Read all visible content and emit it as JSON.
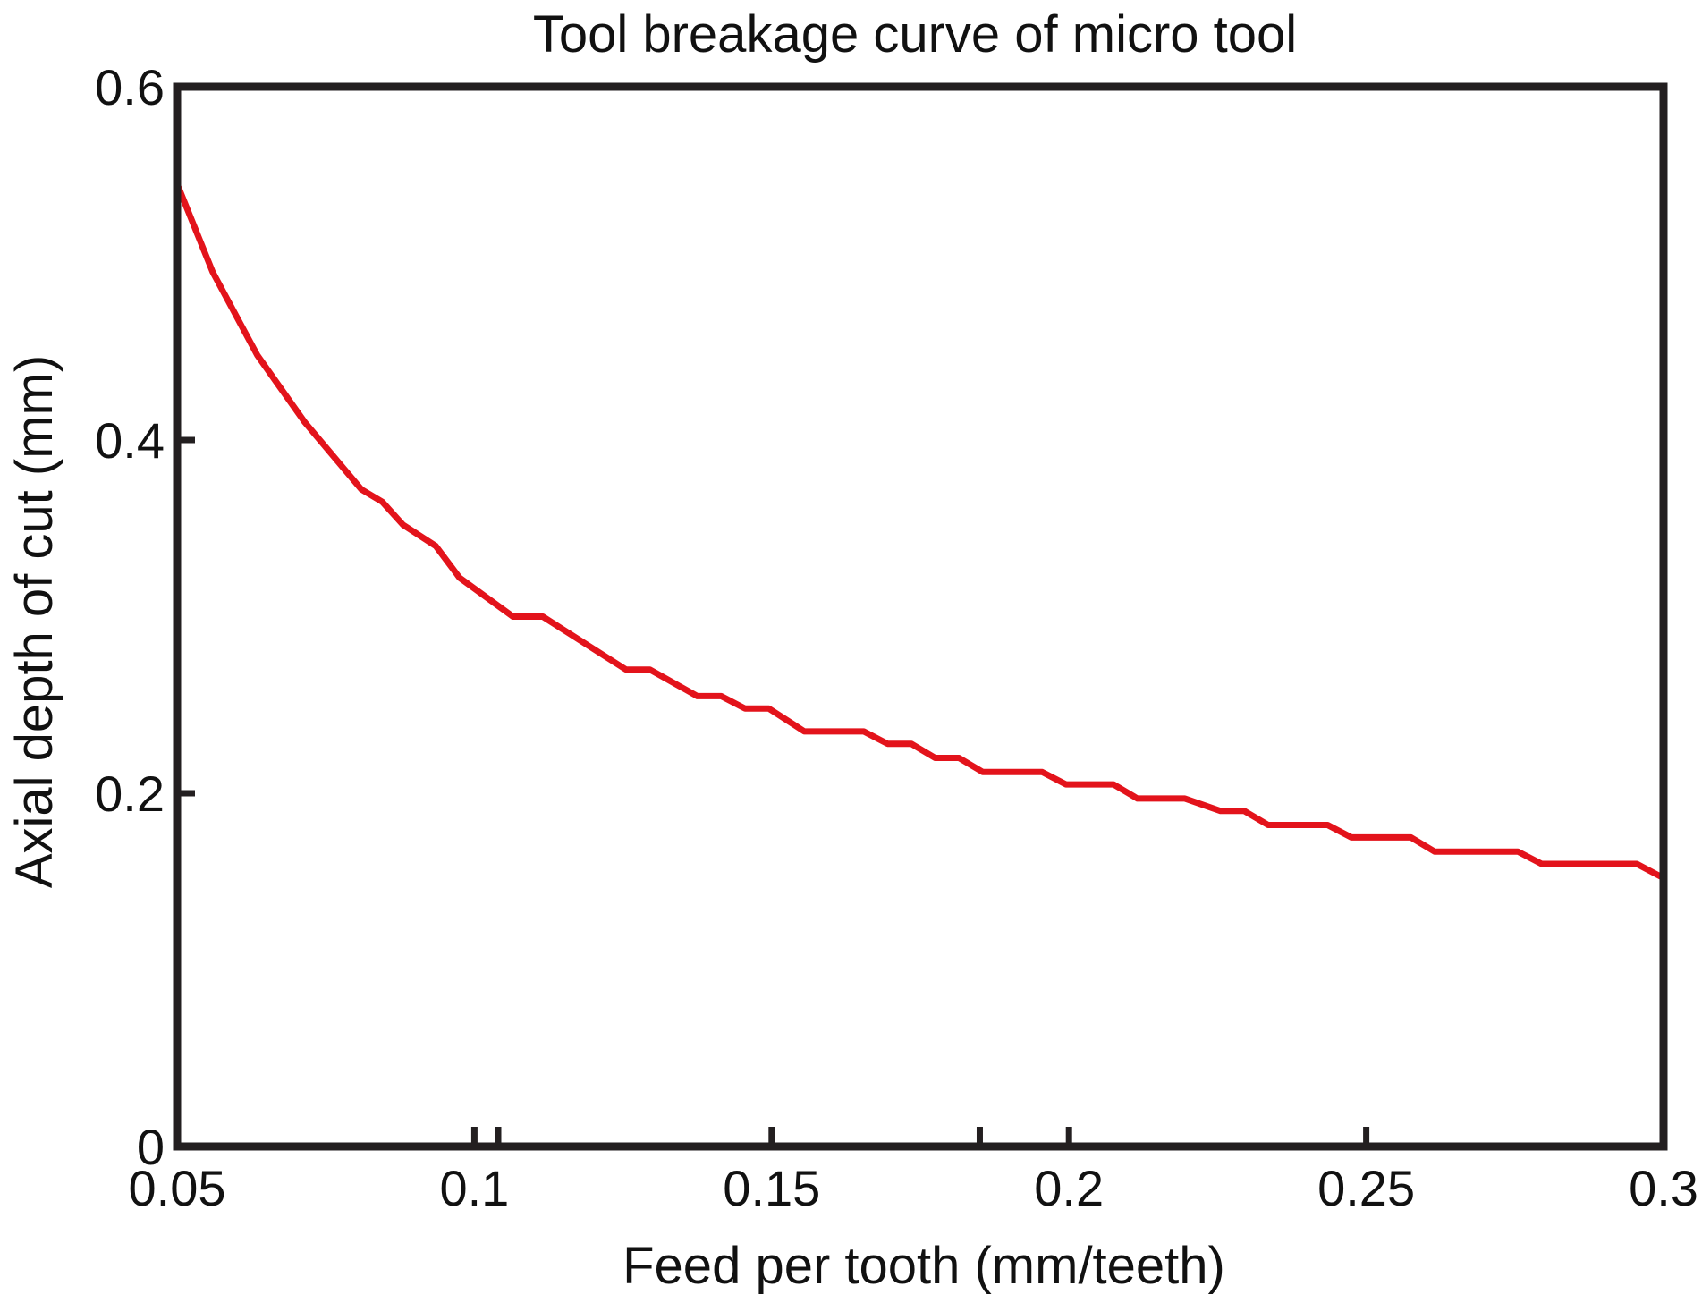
{
  "chart_data": {
    "type": "line",
    "title": "Tool breakage curve of micro tool",
    "xlabel": "Feed per tooth (mm/teeth)",
    "ylabel": "Axial depth of  cut (mm)",
    "xlim": [
      0.05,
      0.3
    ],
    "ylim": [
      0,
      0.6
    ],
    "xticks": [
      0.05,
      0.1,
      0.15,
      0.2,
      0.25,
      0.3
    ],
    "xtick_labels": [
      "0.05",
      "0.1",
      "0.15",
      "0.2",
      "0.25",
      "0.3"
    ],
    "yticks": [
      0,
      0.2,
      0.4,
      0.6
    ],
    "ytick_labels": [
      "0",
      "0.2",
      "0.4",
      "0.6"
    ],
    "extra_bottom_ticks": [
      0.104,
      0.185
    ],
    "grid": false,
    "series": [
      {
        "name": "Tool breakage curve",
        "color": "#e3131b",
        "x": [
          0.05,
          0.056,
          0.0635,
          0.0715,
          0.081,
          0.0845,
          0.088,
          0.0935,
          0.0975,
          0.1065,
          0.1115,
          0.1255,
          0.1295,
          0.1375,
          0.1415,
          0.1455,
          0.1495,
          0.1555,
          0.1615,
          0.1655,
          0.1695,
          0.1735,
          0.1775,
          0.1815,
          0.1855,
          0.1915,
          0.1955,
          0.1995,
          0.2035,
          0.2075,
          0.2115,
          0.2155,
          0.2195,
          0.2255,
          0.2295,
          0.2335,
          0.2375,
          0.2435,
          0.2475,
          0.2535,
          0.2575,
          0.2615,
          0.2675,
          0.2755,
          0.2795,
          0.2855,
          0.2955,
          0.3
        ],
        "y": [
          0.545,
          0.495,
          0.448,
          0.41,
          0.372,
          0.365,
          0.352,
          0.34,
          0.322,
          0.3,
          0.3,
          0.27,
          0.27,
          0.255,
          0.255,
          0.248,
          0.248,
          0.235,
          0.235,
          0.235,
          0.228,
          0.228,
          0.22,
          0.22,
          0.212,
          0.212,
          0.212,
          0.205,
          0.205,
          0.205,
          0.197,
          0.197,
          0.197,
          0.19,
          0.19,
          0.182,
          0.182,
          0.182,
          0.175,
          0.175,
          0.175,
          0.167,
          0.167,
          0.167,
          0.16,
          0.16,
          0.16,
          0.152
        ]
      }
    ]
  }
}
